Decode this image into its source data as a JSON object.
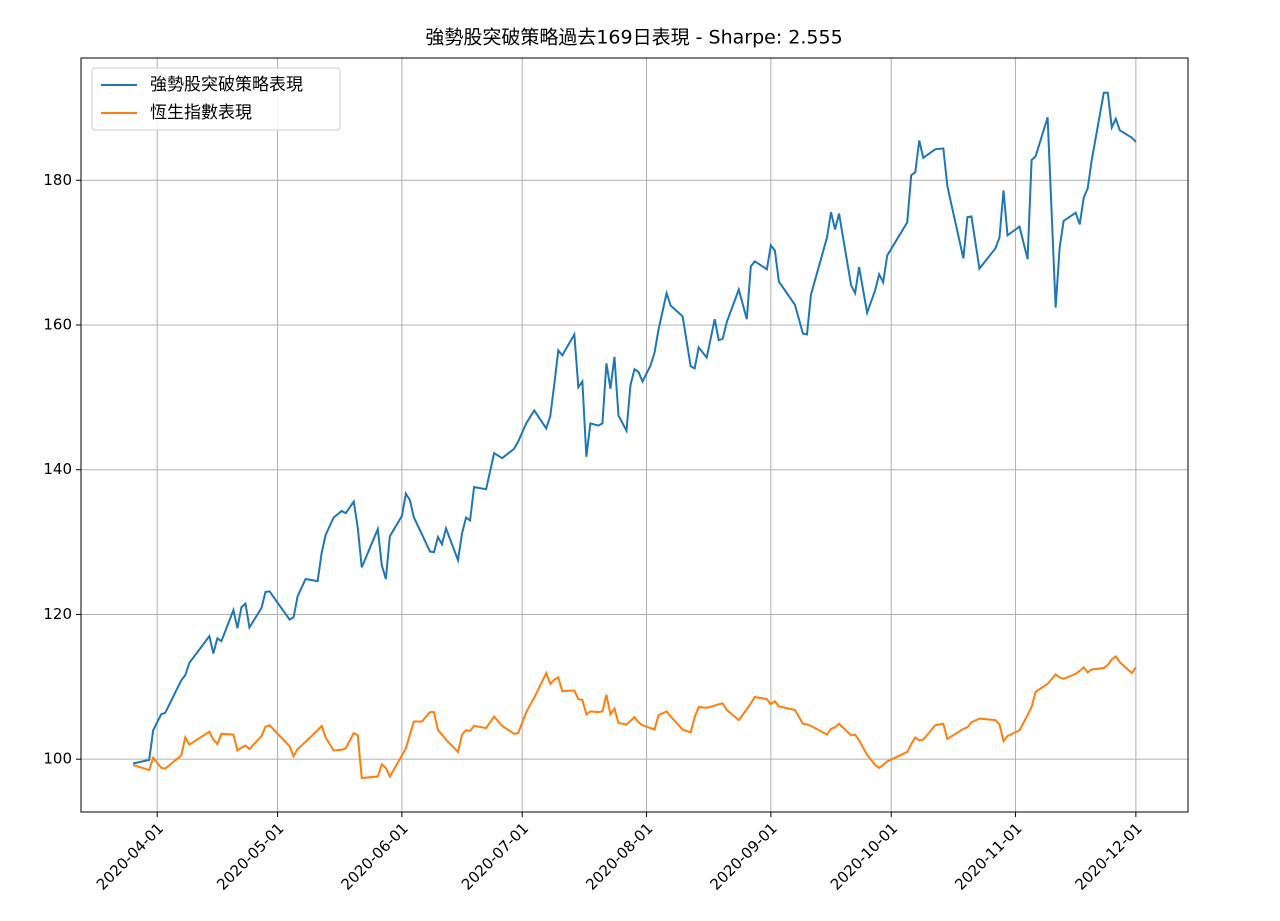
{
  "chart_data": {
    "type": "line",
    "title": "強勢股突破策略過去169日表現 - Sharpe: 2.555",
    "x": [
      "2020-03-26",
      "2020-03-30",
      "2020-03-31",
      "2020-04-02",
      "2020-04-03",
      "2020-04-07",
      "2020-04-08",
      "2020-04-09",
      "2020-04-14",
      "2020-04-15",
      "2020-04-16",
      "2020-04-17",
      "2020-04-20",
      "2020-04-21",
      "2020-04-22",
      "2020-04-23",
      "2020-04-24",
      "2020-04-27",
      "2020-04-28",
      "2020-04-29",
      "2020-05-04",
      "2020-05-05",
      "2020-05-06",
      "2020-05-08",
      "2020-05-11",
      "2020-05-12",
      "2020-05-13",
      "2020-05-15",
      "2020-05-17",
      "2020-05-18",
      "2020-05-20",
      "2020-05-21",
      "2020-05-22",
      "2020-05-26",
      "2020-05-27",
      "2020-05-28",
      "2020-05-29",
      "2020-06-01",
      "2020-06-02",
      "2020-06-03",
      "2020-06-04",
      "2020-06-06",
      "2020-06-08",
      "2020-06-09",
      "2020-06-10",
      "2020-06-11",
      "2020-06-12",
      "2020-06-15",
      "2020-06-16",
      "2020-06-17",
      "2020-06-18",
      "2020-06-19",
      "2020-06-22",
      "2020-06-24",
      "2020-06-26",
      "2020-06-29",
      "2020-06-30",
      "2020-07-02",
      "2020-07-04",
      "2020-07-07",
      "2020-07-08",
      "2020-07-09",
      "2020-07-10",
      "2020-07-11",
      "2020-07-14",
      "2020-07-15",
      "2020-07-16",
      "2020-07-17",
      "2020-07-18",
      "2020-07-20",
      "2020-07-21",
      "2020-07-22",
      "2020-07-23",
      "2020-07-24",
      "2020-07-25",
      "2020-07-27",
      "2020-07-28",
      "2020-07-29",
      "2020-07-30",
      "2020-07-31",
      "2020-08-02",
      "2020-08-03",
      "2020-08-04",
      "2020-08-06",
      "2020-08-07",
      "2020-08-10",
      "2020-08-12",
      "2020-08-13",
      "2020-08-14",
      "2020-08-16",
      "2020-08-18",
      "2020-08-19",
      "2020-08-20",
      "2020-08-21",
      "2020-08-24",
      "2020-08-26",
      "2020-08-27",
      "2020-08-28",
      "2020-08-31",
      "2020-09-01",
      "2020-09-02",
      "2020-09-03",
      "2020-09-07",
      "2020-09-09",
      "2020-09-10",
      "2020-09-11",
      "2020-09-15",
      "2020-09-16",
      "2020-09-17",
      "2020-09-18",
      "2020-09-21",
      "2020-09-22",
      "2020-09-23",
      "2020-09-25",
      "2020-09-27",
      "2020-09-28",
      "2020-09-29",
      "2020-09-30",
      "2020-10-05",
      "2020-10-06",
      "2020-10-07",
      "2020-10-08",
      "2020-10-09",
      "2020-10-12",
      "2020-10-14",
      "2020-10-15",
      "2020-10-19",
      "2020-10-20",
      "2020-10-21",
      "2020-10-23",
      "2020-10-27",
      "2020-10-28",
      "2020-10-29",
      "2020-10-30",
      "2020-11-02",
      "2020-11-04",
      "2020-11-05",
      "2020-11-06",
      "2020-11-09",
      "2020-11-11",
      "2020-11-12",
      "2020-11-13",
      "2020-11-16",
      "2020-11-17",
      "2020-11-18",
      "2020-11-19",
      "2020-11-20",
      "2020-11-23",
      "2020-11-24",
      "2020-11-25",
      "2020-11-26",
      "2020-11-27",
      "2020-11-30",
      "2020-12-01"
    ],
    "series": [
      {
        "name": "強勢股突破策略表現",
        "color": "#1f77b4",
        "values": [
          99.4,
          99.9,
          104.0,
          106.2,
          106.4,
          110.9,
          111.6,
          113.3,
          117.0,
          114.6,
          116.7,
          116.3,
          120.6,
          118.1,
          121.0,
          121.5,
          118.2,
          120.9,
          123.1,
          123.2,
          119.3,
          119.6,
          122.5,
          124.9,
          124.6,
          128.5,
          131.0,
          133.4,
          134.3,
          134.0,
          135.6,
          132.0,
          126.5,
          131.8,
          126.8,
          124.9,
          130.8,
          133.6,
          136.7,
          135.8,
          133.4,
          131.1,
          128.7,
          128.6,
          130.7,
          129.7,
          131.9,
          127.5,
          131.2,
          133.4,
          133.0,
          137.6,
          137.3,
          142.3,
          141.6,
          142.9,
          143.9,
          146.4,
          148.2,
          145.7,
          147.4,
          151.8,
          156.5,
          155.8,
          158.7,
          151.4,
          152.2,
          141.8,
          146.4,
          146.1,
          146.4,
          154.7,
          151.2,
          155.6,
          147.5,
          145.4,
          151.7,
          153.9,
          153.5,
          152.2,
          154.4,
          156.2,
          159.4,
          164.4,
          162.7,
          161.2,
          154.3,
          154.0,
          156.9,
          155.5,
          160.8,
          157.9,
          158.1,
          160.4,
          164.9,
          160.8,
          168.1,
          168.8,
          167.7,
          171.0,
          170.3,
          166.0,
          162.8,
          158.8,
          158.7,
          164.2,
          172.1,
          175.6,
          173.2,
          175.4,
          165.5,
          164.4,
          168.0,
          161.7,
          164.8,
          167.0,
          165.9,
          169.6,
          174.2,
          180.7,
          181.1,
          185.5,
          183.1,
          184.3,
          184.4,
          179.2,
          169.2,
          174.9,
          175.0,
          167.8,
          170.6,
          172.1,
          178.6,
          172.4,
          173.6,
          169.1,
          182.8,
          183.3,
          188.7,
          162.4,
          170.7,
          174.4,
          175.5,
          173.9,
          177.6,
          178.9,
          182.8,
          192.1,
          192.1,
          187.3,
          188.5,
          186.9,
          185.9,
          185.3
        ]
      },
      {
        "name": "恆生指數表現",
        "color": "#ff7f0e",
        "values": [
          99.2,
          98.5,
          100.2,
          98.8,
          98.7,
          100.5,
          103.0,
          102.0,
          103.8,
          102.7,
          102.1,
          103.5,
          103.4,
          101.2,
          101.6,
          101.9,
          101.4,
          103.2,
          104.5,
          104.7,
          101.8,
          100.4,
          101.4,
          102.4,
          104.0,
          104.6,
          103.0,
          101.2,
          101.3,
          101.5,
          103.6,
          103.3,
          97.4,
          97.6,
          99.3,
          98.8,
          97.6,
          100.5,
          101.5,
          103.4,
          105.2,
          105.2,
          106.5,
          106.5,
          104.0,
          103.4,
          102.7,
          101.0,
          103.4,
          104.0,
          103.9,
          104.6,
          104.3,
          105.9,
          104.6,
          103.5,
          103.6,
          106.5,
          108.5,
          111.9,
          110.4,
          111.0,
          111.3,
          109.4,
          109.5,
          108.3,
          108.2,
          106.2,
          106.6,
          106.5,
          106.6,
          108.9,
          106.2,
          107.0,
          105.0,
          104.8,
          105.3,
          105.8,
          105.1,
          104.7,
          104.3,
          104.1,
          106.1,
          106.6,
          105.9,
          104.1,
          103.7,
          105.8,
          107.2,
          107.1,
          107.4,
          107.6,
          107.7,
          106.8,
          105.4,
          106.9,
          107.7,
          108.6,
          108.3,
          107.6,
          108.0,
          107.3,
          106.8,
          104.9,
          104.8,
          104.6,
          103.4,
          104.2,
          104.4,
          104.9,
          103.3,
          103.4,
          102.6,
          100.6,
          99.2,
          98.8,
          99.2,
          99.7,
          101.0,
          102.1,
          103.0,
          102.6,
          102.7,
          104.7,
          104.9,
          102.8,
          104.2,
          104.4,
          105.1,
          105.6,
          105.4,
          104.8,
          102.5,
          103.2,
          104.0,
          106.1,
          107.2,
          109.3,
          110.4,
          111.7,
          111.3,
          111.1,
          111.8,
          112.2,
          112.7,
          112.0,
          112.4,
          112.6,
          113.0,
          113.8,
          114.2,
          113.4,
          111.9,
          112.7
        ]
      }
    ],
    "xlim": [
      "2020-03-13",
      "2020-12-14"
    ],
    "xticks": [
      "2020-04-01",
      "2020-05-01",
      "2020-06-01",
      "2020-07-01",
      "2020-08-01",
      "2020-09-01",
      "2020-10-01",
      "2020-11-01",
      "2020-12-01"
    ],
    "ylim": [
      92.7,
      196.9
    ],
    "yticks": [
      100,
      120,
      140,
      160,
      180
    ],
    "grid": true,
    "legend": "upper-left"
  }
}
